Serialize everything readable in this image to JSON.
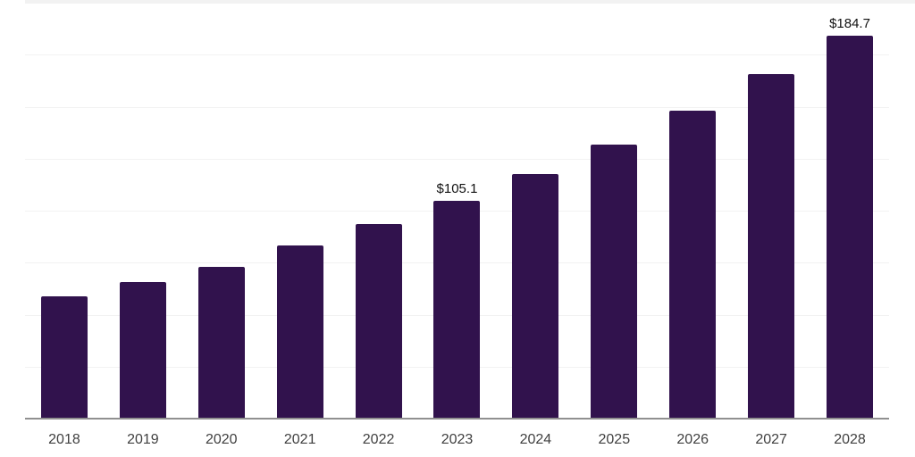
{
  "chart_data": {
    "type": "bar",
    "categories": [
      "2018",
      "2019",
      "2020",
      "2021",
      "2022",
      "2023",
      "2024",
      "2025",
      "2026",
      "2027",
      "2028"
    ],
    "values": [
      59.3,
      65.9,
      73.4,
      83.5,
      93.9,
      105.1,
      117.9,
      132.4,
      148.5,
      165.9,
      184.7
    ],
    "value_labels": [
      null,
      null,
      null,
      null,
      null,
      "$105.1",
      null,
      null,
      null,
      null,
      "$184.7"
    ],
    "ylim": [
      0,
      200
    ],
    "gridline_step": 25,
    "grid": "horizontal",
    "legend": "none",
    "y_axis_labels_visible": false,
    "colors": {
      "bar": "#31124d",
      "gridline": "#f2f2f2",
      "axis_line": "#909090",
      "value_label": "#111111",
      "tick_label": "#404040",
      "background": "#ffffff"
    }
  }
}
